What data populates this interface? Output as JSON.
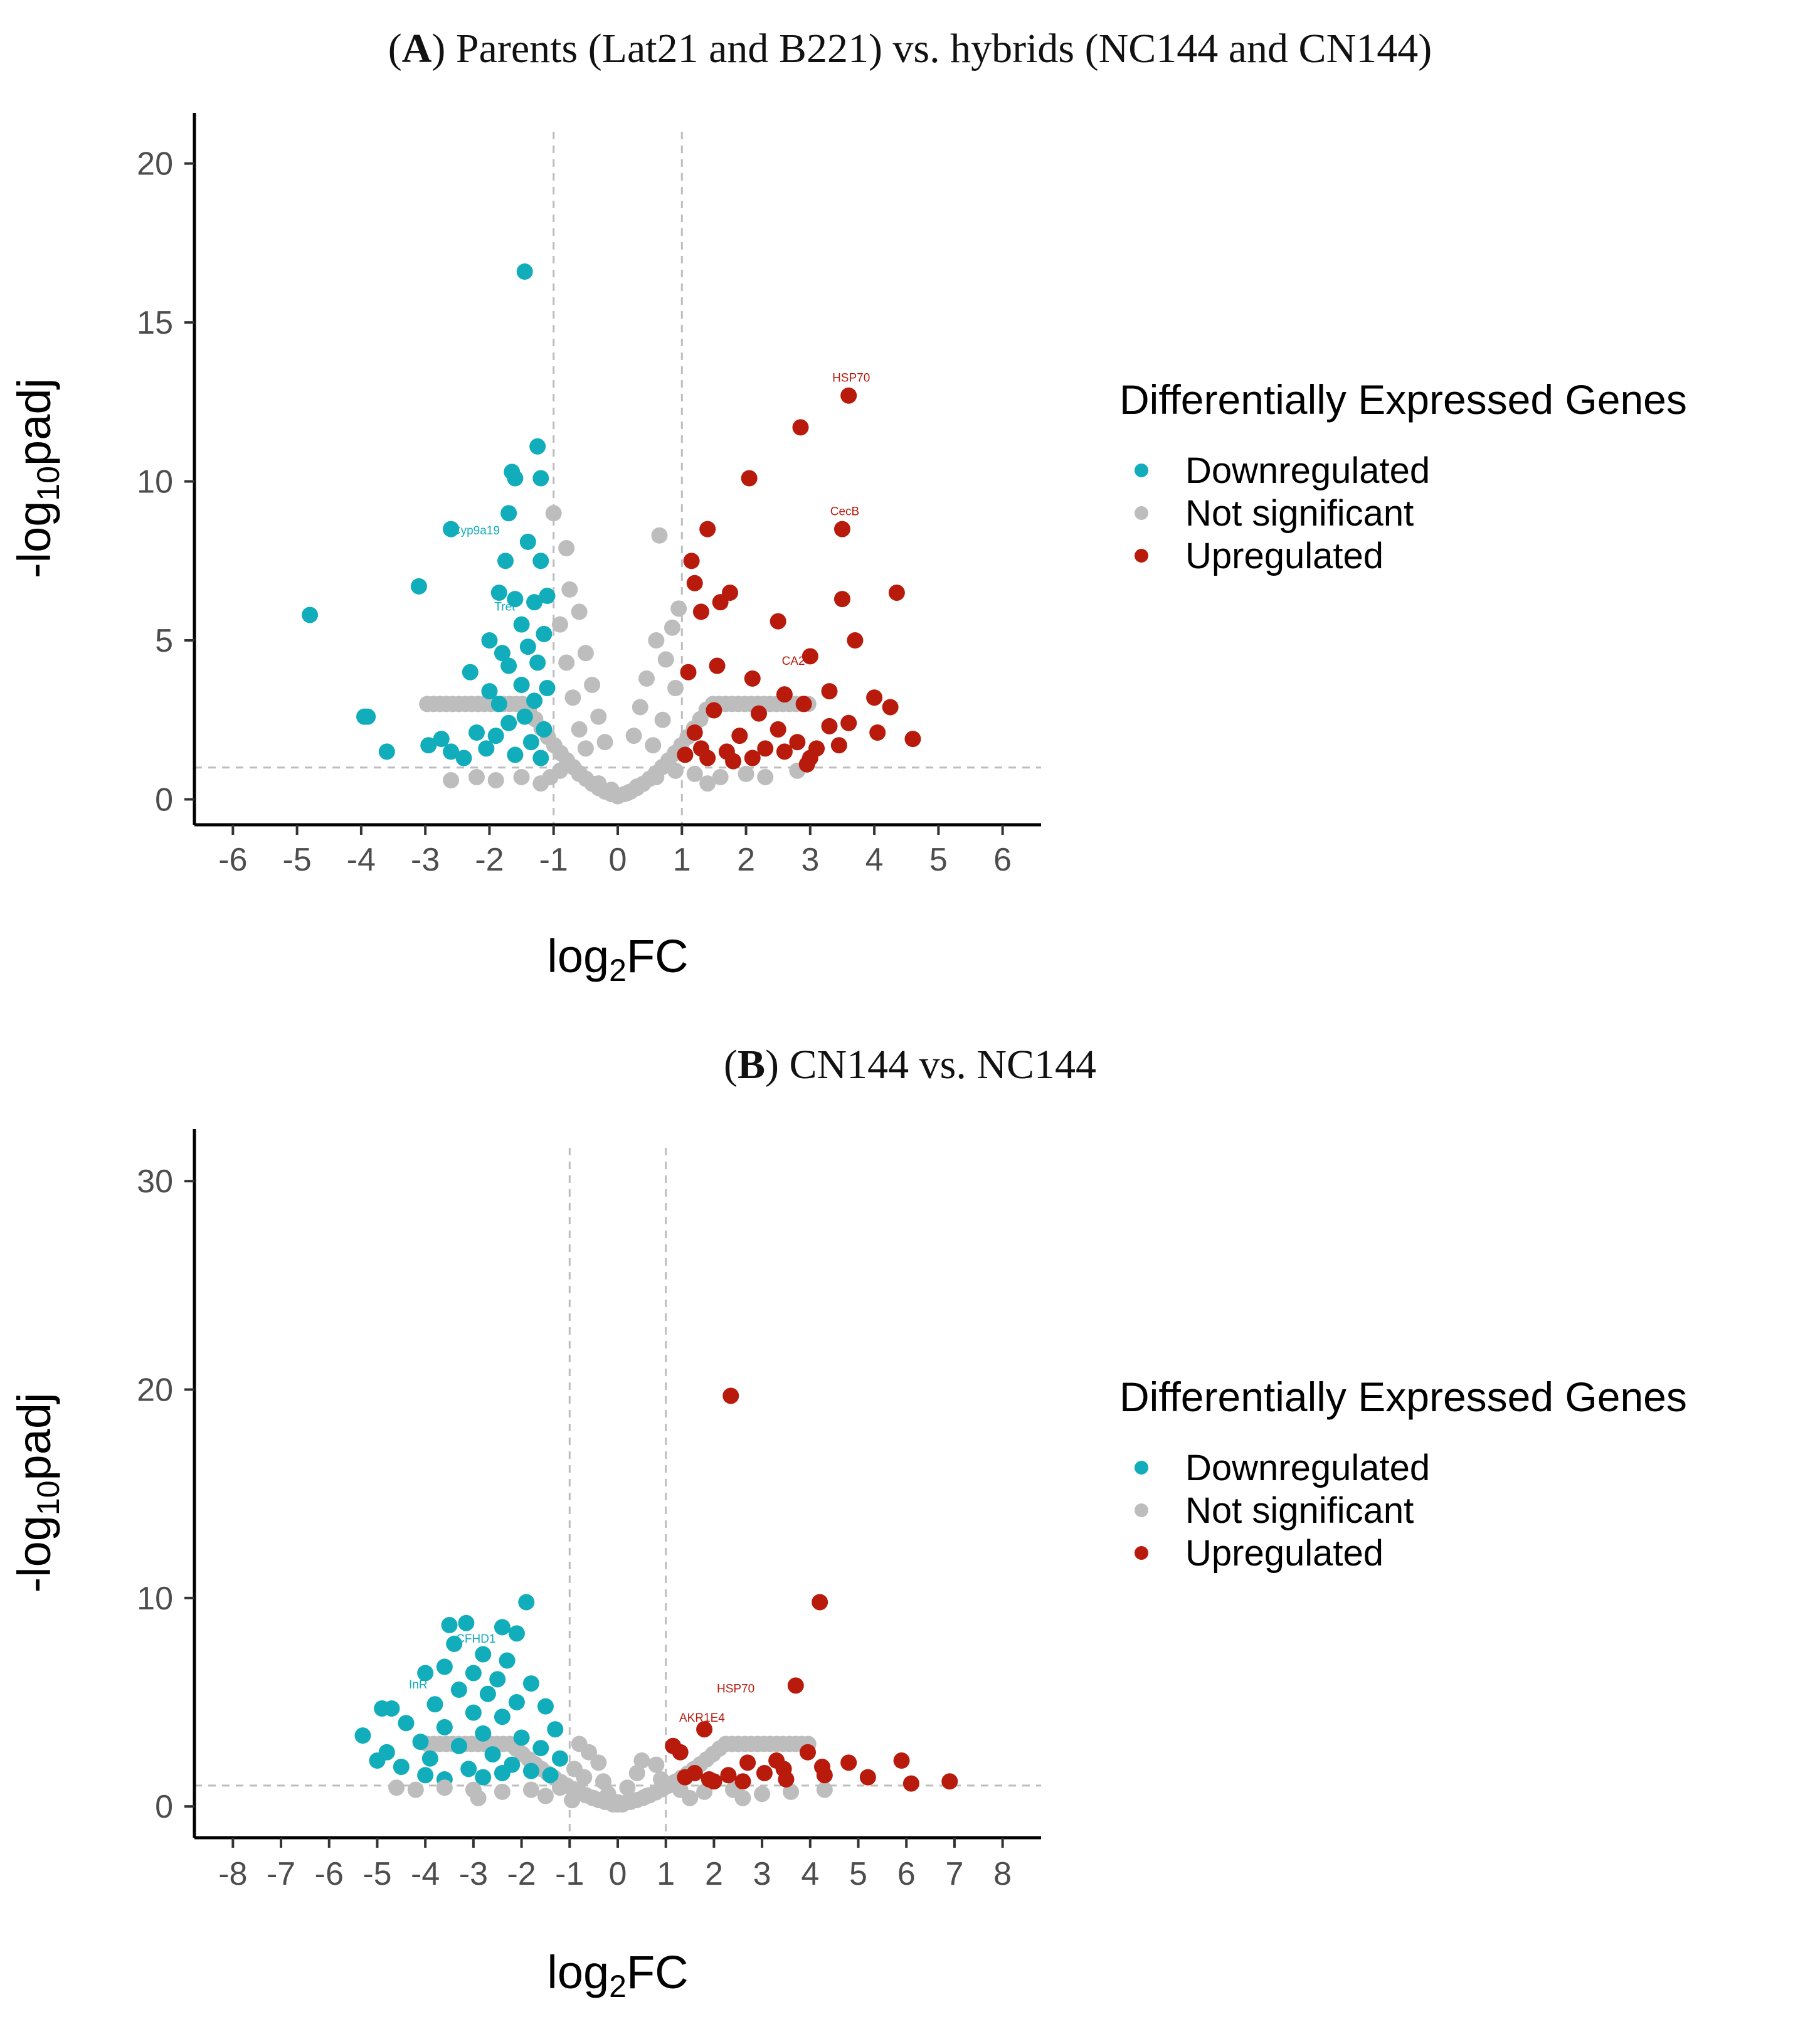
{
  "colors": {
    "downregulated": "#11adbb",
    "not_significant": "#bdbdbd",
    "upregulated": "#b81a0c",
    "threshold_line": "#bdbdbd",
    "axis": "#000000"
  },
  "panels": [
    {
      "title_letter": "A",
      "title_rest": "Parents (Lat21 and B221) vs. hybrids (NC144 and CN144)",
      "legend_title": "Differentially Expressed Genes",
      "legend_items": [
        "Downregulated",
        "Not significant",
        "Upregulated"
      ]
    },
    {
      "title_letter": "B",
      "title_rest": "CN144 vs. NC144",
      "legend_title": "Differentially Expressed Genes",
      "legend_items": [
        "Downregulated",
        "Not significant",
        "Upregulated"
      ]
    }
  ],
  "chart_data": [
    {
      "type": "scatter",
      "title": "(A) Parents (Lat21 and B221) vs. hybrids (NC144 and CN144)",
      "xlabel": "log2FC",
      "ylabel": "-log10padj",
      "xlim": [
        -6.6,
        6.6
      ],
      "ylim": [
        -0.8,
        21.0
      ],
      "xticks": [
        -6,
        -5,
        -4,
        -3,
        -2,
        -1,
        0,
        1,
        2,
        3,
        4,
        5,
        6
      ],
      "yticks": [
        0,
        5,
        10,
        15,
        20
      ],
      "thresholds": {
        "log2fc": [
          -1,
          1
        ],
        "neg_log10_padj": 1.0
      },
      "grid": false,
      "legend_position": "right",
      "series": [
        {
          "name": "Downregulated",
          "points": [
            [
              -1.45,
              16.6
            ],
            [
              -1.25,
              11.1
            ],
            [
              -1.65,
              10.3
            ],
            [
              -1.6,
              10.1
            ],
            [
              -1.2,
              10.1
            ],
            [
              -1.7,
              9.0
            ],
            [
              -1.4,
              8.1
            ],
            [
              -2.6,
              8.5
            ],
            [
              -1.75,
              7.5
            ],
            [
              -1.2,
              7.5
            ],
            [
              -3.1,
              6.7
            ],
            [
              -4.8,
              5.8
            ],
            [
              -1.85,
              6.5
            ],
            [
              -1.6,
              6.3
            ],
            [
              -1.3,
              6.2
            ],
            [
              -1.1,
              6.4
            ],
            [
              -1.5,
              5.5
            ],
            [
              -2.0,
              5.0
            ],
            [
              -1.8,
              4.6
            ],
            [
              -1.4,
              4.8
            ],
            [
              -1.15,
              5.2
            ],
            [
              -2.3,
              4.0
            ],
            [
              -1.7,
              4.2
            ],
            [
              -1.25,
              4.3
            ],
            [
              -2.0,
              3.4
            ],
            [
              -1.5,
              3.6
            ],
            [
              -1.1,
              3.5
            ],
            [
              -1.85,
              3.0
            ],
            [
              -1.3,
              3.1
            ],
            [
              -3.9,
              2.6
            ],
            [
              -3.95,
              2.6
            ],
            [
              -1.7,
              2.4
            ],
            [
              -1.45,
              2.6
            ],
            [
              -1.15,
              2.2
            ],
            [
              -2.2,
              2.1
            ],
            [
              -1.9,
              2.0
            ],
            [
              -1.35,
              1.8
            ],
            [
              -2.75,
              1.9
            ],
            [
              -2.95,
              1.7
            ],
            [
              -3.6,
              1.5
            ],
            [
              -2.6,
              1.5
            ],
            [
              -2.4,
              1.3
            ],
            [
              -2.05,
              1.6
            ],
            [
              -1.6,
              1.4
            ],
            [
              -1.2,
              1.3
            ]
          ]
        },
        {
          "name": "Not significant",
          "points": [
            [
              -1.0,
              9.0
            ],
            [
              -0.8,
              7.9
            ],
            [
              0.65,
              8.3
            ],
            [
              -0.75,
              6.6
            ],
            [
              -0.6,
              5.9
            ],
            [
              -0.9,
              5.5
            ],
            [
              -0.5,
              4.6
            ],
            [
              -0.8,
              4.3
            ],
            [
              -0.4,
              3.6
            ],
            [
              -0.7,
              3.2
            ],
            [
              -0.3,
              2.6
            ],
            [
              -0.6,
              2.2
            ],
            [
              -0.2,
              1.8
            ],
            [
              -0.5,
              1.6
            ],
            [
              0.95,
              6.0
            ],
            [
              0.85,
              5.4
            ],
            [
              0.6,
              5.0
            ],
            [
              0.75,
              4.4
            ],
            [
              0.45,
              3.8
            ],
            [
              0.9,
              3.5
            ],
            [
              0.35,
              2.9
            ],
            [
              0.7,
              2.5
            ],
            [
              0.25,
              2.0
            ],
            [
              0.55,
              1.7
            ],
            [
              -1.05,
              0.7
            ],
            [
              -0.9,
              0.9
            ],
            [
              -0.6,
              0.8
            ],
            [
              -0.3,
              0.5
            ],
            [
              0.0,
              0.1
            ],
            [
              0.3,
              0.4
            ],
            [
              0.6,
              0.7
            ],
            [
              0.9,
              0.9
            ],
            [
              1.2,
              0.8
            ],
            [
              1.6,
              0.7
            ],
            [
              2.0,
              0.8
            ],
            [
              2.3,
              0.7
            ],
            [
              2.8,
              0.9
            ],
            [
              -1.5,
              0.7
            ],
            [
              -1.9,
              0.6
            ],
            [
              -2.2,
              0.7
            ],
            [
              -2.6,
              0.6
            ],
            [
              -1.2,
              0.5
            ],
            [
              1.4,
              0.5
            ],
            [
              -0.1,
              0.3
            ],
            [
              0.15,
              0.2
            ]
          ]
        },
        {
          "name": "Upregulated",
          "points": [
            [
              3.6,
              12.7
            ],
            [
              2.85,
              11.7
            ],
            [
              2.05,
              10.1
            ],
            [
              3.5,
              8.5
            ],
            [
              1.4,
              8.5
            ],
            [
              1.15,
              7.5
            ],
            [
              1.2,
              6.8
            ],
            [
              4.35,
              6.5
            ],
            [
              1.75,
              6.5
            ],
            [
              1.6,
              6.2
            ],
            [
              3.5,
              6.3
            ],
            [
              1.3,
              5.9
            ],
            [
              2.5,
              5.6
            ],
            [
              3.7,
              5.0
            ],
            [
              1.55,
              4.2
            ],
            [
              3.0,
              4.5
            ],
            [
              2.1,
              3.8
            ],
            [
              1.1,
              4.0
            ],
            [
              2.6,
              3.3
            ],
            [
              3.3,
              3.4
            ],
            [
              4.0,
              3.2
            ],
            [
              4.25,
              2.9
            ],
            [
              2.9,
              3.0
            ],
            [
              2.2,
              2.7
            ],
            [
              1.5,
              2.8
            ],
            [
              3.6,
              2.4
            ],
            [
              4.05,
              2.1
            ],
            [
              4.6,
              1.9
            ],
            [
              3.3,
              2.3
            ],
            [
              2.5,
              2.2
            ],
            [
              1.9,
              2.0
            ],
            [
              1.2,
              2.1
            ],
            [
              2.8,
              1.8
            ],
            [
              3.1,
              1.6
            ],
            [
              3.45,
              1.7
            ],
            [
              2.3,
              1.6
            ],
            [
              1.7,
              1.5
            ],
            [
              1.3,
              1.6
            ],
            [
              1.05,
              1.4
            ],
            [
              2.6,
              1.5
            ],
            [
              3.0,
              1.3
            ],
            [
              1.8,
              1.2
            ],
            [
              1.4,
              1.3
            ],
            [
              2.1,
              1.3
            ],
            [
              2.95,
              1.1
            ]
          ]
        }
      ],
      "annotations": [
        {
          "text": "HSP70",
          "x": 3.6,
          "y": 12.7,
          "color": "upregulated"
        },
        {
          "text": "CecB",
          "x": 3.5,
          "y": 8.5,
          "color": "upregulated"
        },
        {
          "text": "CA2",
          "x": 2.7,
          "y": 3.8,
          "color": "upregulated"
        },
        {
          "text": "Cyp9a19",
          "x": -2.25,
          "y": 7.9,
          "color": "downregulated"
        },
        {
          "text": "Tret",
          "x": -1.8,
          "y": 5.5,
          "color": "downregulated"
        }
      ]
    },
    {
      "type": "scatter",
      "title": "(B) CN144 vs. NC144",
      "xlabel": "log2FC",
      "ylabel": "-log10padj",
      "xlim": [
        -8.8,
        8.8
      ],
      "ylim": [
        -1.5,
        31.6
      ],
      "xticks": [
        -8,
        -7,
        -6,
        -5,
        -4,
        -3,
        -2,
        -1,
        0,
        1,
        2,
        3,
        4,
        5,
        6,
        7,
        8
      ],
      "yticks": [
        0,
        10,
        20,
        30
      ],
      "thresholds": {
        "log2fc": [
          -1,
          1
        ],
        "neg_log10_padj": 1.0
      },
      "grid": false,
      "legend_position": "right",
      "series": [
        {
          "name": "Downregulated",
          "points": [
            [
              -1.9,
              9.8
            ],
            [
              -3.15,
              8.8
            ],
            [
              -3.5,
              8.7
            ],
            [
              -2.4,
              8.6
            ],
            [
              -2.1,
              8.3
            ],
            [
              -3.4,
              7.8
            ],
            [
              -2.8,
              7.3
            ],
            [
              -2.3,
              7.0
            ],
            [
              -3.6,
              6.7
            ],
            [
              -3.0,
              6.4
            ],
            [
              -4.0,
              6.4
            ],
            [
              -2.5,
              6.1
            ],
            [
              -1.8,
              5.9
            ],
            [
              -3.3,
              5.6
            ],
            [
              -2.7,
              5.4
            ],
            [
              -4.7,
              4.7
            ],
            [
              -4.9,
              4.7
            ],
            [
              -2.1,
              5.0
            ],
            [
              -3.8,
              4.9
            ],
            [
              -1.5,
              4.8
            ],
            [
              -3.0,
              4.5
            ],
            [
              -2.4,
              4.3
            ],
            [
              -4.4,
              4.0
            ],
            [
              -3.6,
              3.8
            ],
            [
              -1.3,
              3.7
            ],
            [
              -2.8,
              3.5
            ],
            [
              -5.3,
              3.4
            ],
            [
              -2.0,
              3.3
            ],
            [
              -4.1,
              3.1
            ],
            [
              -3.3,
              2.9
            ],
            [
              -4.8,
              2.6
            ],
            [
              -1.6,
              2.8
            ],
            [
              -2.6,
              2.5
            ],
            [
              -3.9,
              2.3
            ],
            [
              -1.2,
              2.3
            ],
            [
              -2.2,
              2.0
            ],
            [
              -4.5,
              1.9
            ],
            [
              -3.1,
              1.8
            ],
            [
              -1.8,
              1.7
            ],
            [
              -4.0,
              1.5
            ],
            [
              -2.8,
              1.4
            ],
            [
              -1.4,
              1.5
            ],
            [
              -3.6,
              1.3
            ],
            [
              -2.4,
              1.6
            ],
            [
              -5.0,
              2.2
            ]
          ]
        },
        {
          "name": "Not significant",
          "points": [
            [
              -0.8,
              3.0
            ],
            [
              -0.6,
              2.6
            ],
            [
              -0.4,
              2.1
            ],
            [
              -0.9,
              1.8
            ],
            [
              -0.7,
              1.4
            ],
            [
              -0.3,
              1.2
            ],
            [
              0.5,
              2.2
            ],
            [
              0.8,
              2.0
            ],
            [
              0.4,
              1.6
            ],
            [
              0.9,
              1.3
            ],
            [
              0.2,
              0.9
            ],
            [
              -0.2,
              0.6
            ],
            [
              0.0,
              0.2
            ],
            [
              -1.2,
              0.9
            ],
            [
              -1.8,
              0.8
            ],
            [
              -2.4,
              0.7
            ],
            [
              -3.0,
              0.8
            ],
            [
              -3.6,
              0.9
            ],
            [
              -4.2,
              0.8
            ],
            [
              -4.6,
              0.9
            ],
            [
              1.3,
              0.8
            ],
            [
              1.8,
              0.7
            ],
            [
              2.4,
              0.8
            ],
            [
              3.0,
              0.6
            ],
            [
              3.6,
              0.7
            ],
            [
              4.3,
              0.8
            ],
            [
              -0.5,
              0.4
            ],
            [
              0.6,
              0.5
            ],
            [
              -1.5,
              0.5
            ],
            [
              1.5,
              0.4
            ],
            [
              -2.9,
              0.4
            ],
            [
              2.6,
              0.4
            ],
            [
              -0.1,
              0.1
            ],
            [
              0.1,
              0.1
            ],
            [
              -0.95,
              0.3
            ]
          ]
        },
        {
          "name": "Upregulated",
          "points": [
            [
              2.35,
              19.7
            ],
            [
              4.2,
              9.8
            ],
            [
              3.7,
              5.8
            ],
            [
              1.8,
              3.7
            ],
            [
              3.95,
              2.6
            ],
            [
              1.15,
              2.9
            ],
            [
              1.3,
              2.6
            ],
            [
              4.8,
              2.1
            ],
            [
              5.9,
              2.2
            ],
            [
              3.3,
              2.2
            ],
            [
              2.7,
              2.1
            ],
            [
              4.25,
              1.9
            ],
            [
              3.45,
              1.8
            ],
            [
              1.6,
              1.6
            ],
            [
              2.3,
              1.5
            ],
            [
              3.05,
              1.6
            ],
            [
              1.9,
              1.3
            ],
            [
              4.3,
              1.5
            ],
            [
              5.2,
              1.4
            ],
            [
              2.6,
              1.2
            ],
            [
              3.5,
              1.3
            ],
            [
              6.1,
              1.1
            ],
            [
              6.9,
              1.2
            ],
            [
              1.4,
              1.4
            ],
            [
              2.0,
              1.2
            ]
          ]
        }
      ],
      "annotations": [
        {
          "text": "CFHD1",
          "x": -3.0,
          "y": 7.2,
          "color": "downregulated"
        },
        {
          "text": "InR",
          "x": -4.2,
          "y": 5.0,
          "color": "downregulated"
        },
        {
          "text": "HSP70",
          "x": 2.4,
          "y": 4.8,
          "color": "upregulated"
        },
        {
          "text": "AKR1E4",
          "x": 1.7,
          "y": 3.4,
          "color": "upregulated"
        }
      ]
    }
  ]
}
